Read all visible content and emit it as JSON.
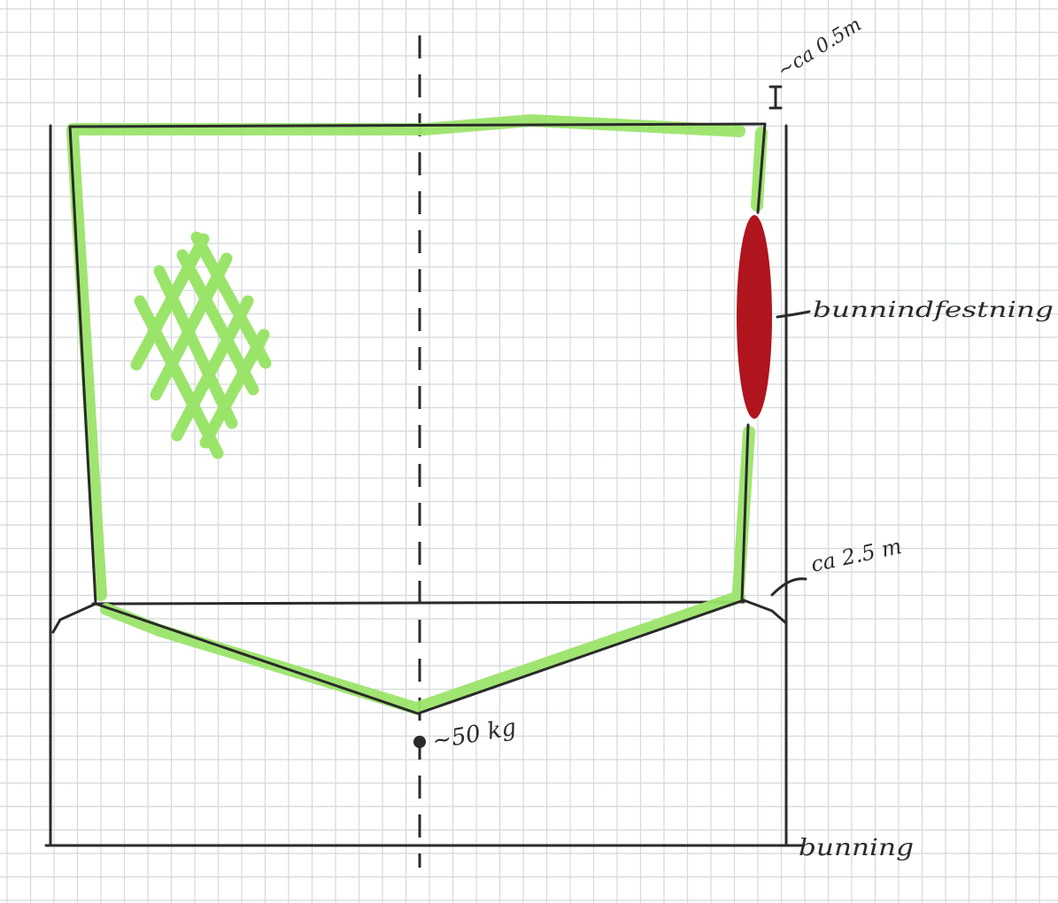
{
  "annotations": {
    "top_clearance": "~ca 0.5m",
    "side_clearance": "ca 2.5 m",
    "weight": "~50 kg",
    "reinforcement": "bunnindfestning",
    "base": "bunning"
  },
  "colors": {
    "paper": "#ffffff",
    "grid": "#d4d8dc",
    "ink": "#2a2a2a",
    "highlight": "#9be46a",
    "reinforcement_fill": "#b0141c"
  }
}
